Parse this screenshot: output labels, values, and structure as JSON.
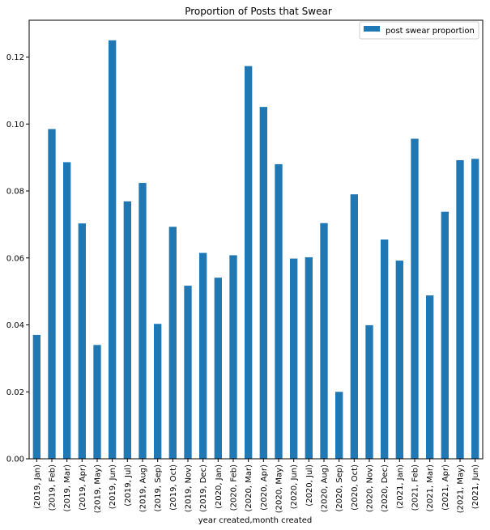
{
  "chart_data": {
    "type": "bar",
    "title": "Proportion of Posts that Swear",
    "xlabel": "year created,month created",
    "ylabel": "",
    "ylim": [
      0,
      0.131
    ],
    "yticks": [
      0.0,
      0.02,
      0.04,
      0.06,
      0.08,
      0.1,
      0.12
    ],
    "ytick_labels": [
      "0.00",
      "0.02",
      "0.04",
      "0.06",
      "0.08",
      "0.10",
      "0.12"
    ],
    "grid": false,
    "legend_position": "top-right",
    "categories": [
      "(2019, Jan)",
      "(2019, Feb)",
      "(2019, Mar)",
      "(2019, Apr)",
      "(2019, May)",
      "(2019, Jun)",
      "(2019, Jul)",
      "(2019, Aug)",
      "(2019, Sep)",
      "(2019, Oct)",
      "(2019, Nov)",
      "(2019, Dec)",
      "(2020, Jan)",
      "(2020, Feb)",
      "(2020, Mar)",
      "(2020, Apr)",
      "(2020, May)",
      "(2020, Jun)",
      "(2020, Jul)",
      "(2020, Aug)",
      "(2020, Sep)",
      "(2020, Oct)",
      "(2020, Nov)",
      "(2020, Dec)",
      "(2021, Jan)",
      "(2021, Feb)",
      "(2021, Mar)",
      "(2021, Apr)",
      "(2021, May)",
      "(2021, Jun)"
    ],
    "series": [
      {
        "name": "post swear proportion",
        "color": "#1f77b4",
        "values": [
          0.037,
          0.0985,
          0.0886,
          0.0703,
          0.034,
          0.125,
          0.0769,
          0.0824,
          0.0403,
          0.0693,
          0.0517,
          0.0615,
          0.0541,
          0.0608,
          0.1173,
          0.1051,
          0.088,
          0.0598,
          0.0602,
          0.0704,
          0.02,
          0.079,
          0.0399,
          0.0655,
          0.0592,
          0.0956,
          0.0488,
          0.0738,
          0.0892,
          0.0896
        ]
      }
    ]
  }
}
